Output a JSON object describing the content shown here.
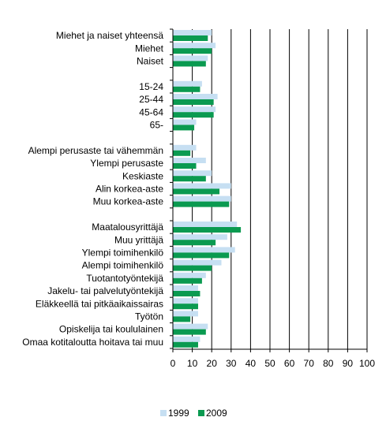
{
  "chart_data": {
    "type": "bar",
    "orientation": "horizontal",
    "title": "",
    "xlabel": "",
    "ylabel": "",
    "xlim": [
      0,
      100
    ],
    "xticks": [
      0,
      10,
      20,
      30,
      40,
      50,
      60,
      70,
      80,
      90,
      100
    ],
    "grid": true,
    "legend": "bottom",
    "categories": [
      "Miehet ja naiset yhteensä",
      "Miehet",
      "Naiset",
      "",
      "15-24",
      "25-44",
      "45-64",
      "65-",
      "",
      "Alempi perusaste tai vähemmän",
      "Ylempi perusaste",
      "Keskiaste",
      "Alin korkea-aste",
      "Muu korkea-aste",
      "",
      "Maatalousyrittäjä",
      "Muu yrittäjä",
      "Ylempi toimihenkilö",
      "Alempi toimihenkilö",
      "Tuotantotyöntekijä",
      "Jakelu- tai palvelutyöntekijä",
      "Eläkkeellä tai pitkäaikaissairas",
      "Työtön",
      "Opiskelija tai koululainen",
      "Omaa kotitaloutta hoitava tai muu"
    ],
    "series": [
      {
        "name": "1999",
        "color": "#c6dff2",
        "values": [
          20,
          22,
          18,
          null,
          15,
          23,
          22,
          12,
          null,
          12,
          17,
          20,
          30,
          30,
          null,
          33,
          28,
          32,
          25,
          17,
          13,
          13,
          13,
          18,
          14
        ]
      },
      {
        "name": "2009",
        "color": "#0a9a50",
        "values": [
          18,
          20,
          17,
          null,
          14,
          21,
          21,
          11,
          null,
          9,
          12,
          17,
          24,
          29,
          null,
          35,
          22,
          29,
          20,
          15,
          14,
          13,
          9,
          17,
          13
        ]
      }
    ]
  }
}
